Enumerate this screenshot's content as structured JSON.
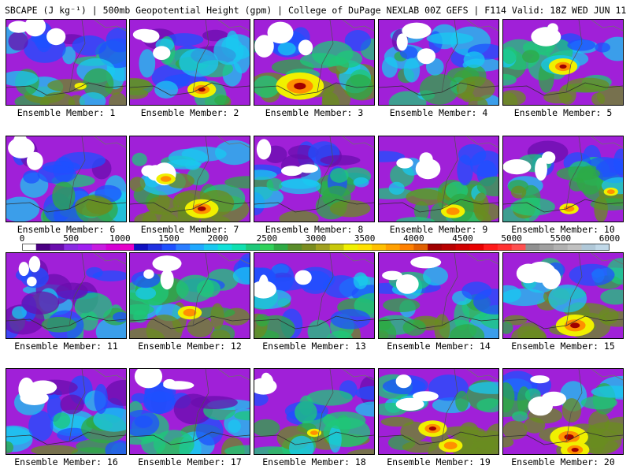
{
  "title": "SBCAPE (J kg⁻¹) | 500mb Geopotential Height (gpm) | College of DuPage NEXLAB 00Z GEFS | F114 Valid: 18Z WED JUN 11 2025",
  "panels": [
    {
      "label": "Ensemble Member: 1",
      "intensity": 0.45,
      "hot": [
        [
          0.62,
          0.78,
          0.05
        ]
      ]
    },
    {
      "label": "Ensemble Member: 2",
      "intensity": 0.35,
      "hot": [
        [
          0.6,
          0.82,
          0.12
        ]
      ]
    },
    {
      "label": "Ensemble Member: 3",
      "intensity": 0.55,
      "hot": [
        [
          0.38,
          0.78,
          0.2
        ]
      ]
    },
    {
      "label": "Ensemble Member: 4",
      "intensity": 0.45,
      "hot": []
    },
    {
      "label": "Ensemble Member: 5",
      "intensity": 0.6,
      "hot": [
        [
          0.5,
          0.55,
          0.12
        ]
      ]
    },
    {
      "label": "Ensemble Member: 6",
      "intensity": 0.3,
      "hot": []
    },
    {
      "label": "Ensemble Member: 7",
      "intensity": 0.7,
      "hot": [
        [
          0.6,
          0.85,
          0.14
        ],
        [
          0.3,
          0.5,
          0.08
        ]
      ]
    },
    {
      "label": "Ensemble Member: 8",
      "intensity": 0.3,
      "hot": []
    },
    {
      "label": "Ensemble Member: 9",
      "intensity": 0.5,
      "hot": [
        [
          0.62,
          0.88,
          0.1
        ]
      ]
    },
    {
      "label": "Ensemble Member: 10",
      "intensity": 0.55,
      "hot": [
        [
          0.55,
          0.85,
          0.08
        ],
        [
          0.9,
          0.65,
          0.06
        ]
      ]
    },
    {
      "label": "Ensemble Member: 11",
      "intensity": 0.25,
      "hot": []
    },
    {
      "label": "Ensemble Member: 12",
      "intensity": 0.55,
      "hot": [
        [
          0.5,
          0.7,
          0.1
        ]
      ]
    },
    {
      "label": "Ensemble Member: 13",
      "intensity": 0.35,
      "hot": []
    },
    {
      "label": "Ensemble Member: 14",
      "intensity": 0.45,
      "hot": []
    },
    {
      "label": "Ensemble Member: 15",
      "intensity": 0.7,
      "hot": [
        [
          0.6,
          0.85,
          0.16
        ]
      ]
    },
    {
      "label": "Ensemble Member: 16",
      "intensity": 0.3,
      "hot": []
    },
    {
      "label": "Ensemble Member: 17",
      "intensity": 0.35,
      "hot": []
    },
    {
      "label": "Ensemble Member: 18",
      "intensity": 0.4,
      "hot": [
        [
          0.5,
          0.75,
          0.06
        ]
      ]
    },
    {
      "label": "Ensemble Member: 19",
      "intensity": 0.75,
      "hot": [
        [
          0.45,
          0.7,
          0.12
        ],
        [
          0.6,
          0.9,
          0.1
        ]
      ]
    },
    {
      "label": "Ensemble Member: 20",
      "intensity": 0.8,
      "hot": [
        [
          0.55,
          0.8,
          0.16
        ],
        [
          0.6,
          0.95,
          0.12
        ]
      ]
    }
  ],
  "colorbar": {
    "ticks": [
      "0",
      "500",
      "1000",
      "1500",
      "2000",
      "2500",
      "3000",
      "3500",
      "4000",
      "4500",
      "5000",
      "5500",
      "6000"
    ],
    "colors": [
      "#ffffff",
      "#4b0082",
      "#6a0dad",
      "#8a2be2",
      "#a020f0",
      "#c71ce0",
      "#d400d4",
      "#e600c8",
      "#1010c0",
      "#2030e0",
      "#1e50ff",
      "#2a7dff",
      "#20a8ff",
      "#19c8f0",
      "#10e0d8",
      "#10e0b0",
      "#1ec87a",
      "#30d25a",
      "#2eaa44",
      "#5a8c2a",
      "#7a8c20",
      "#a0a020",
      "#c8c80a",
      "#f0f000",
      "#ffe000",
      "#ffc000",
      "#ffa000",
      "#ff8000",
      "#e06000",
      "#a00000",
      "#b80000",
      "#d00000",
      "#e80000",
      "#ff1a1a",
      "#ff3030",
      "#ff5050",
      "#909090",
      "#a0a0a0",
      "#b0b0b0",
      "#c0c0c0",
      "#b0c8d8",
      "#c0d8e8"
    ]
  }
}
